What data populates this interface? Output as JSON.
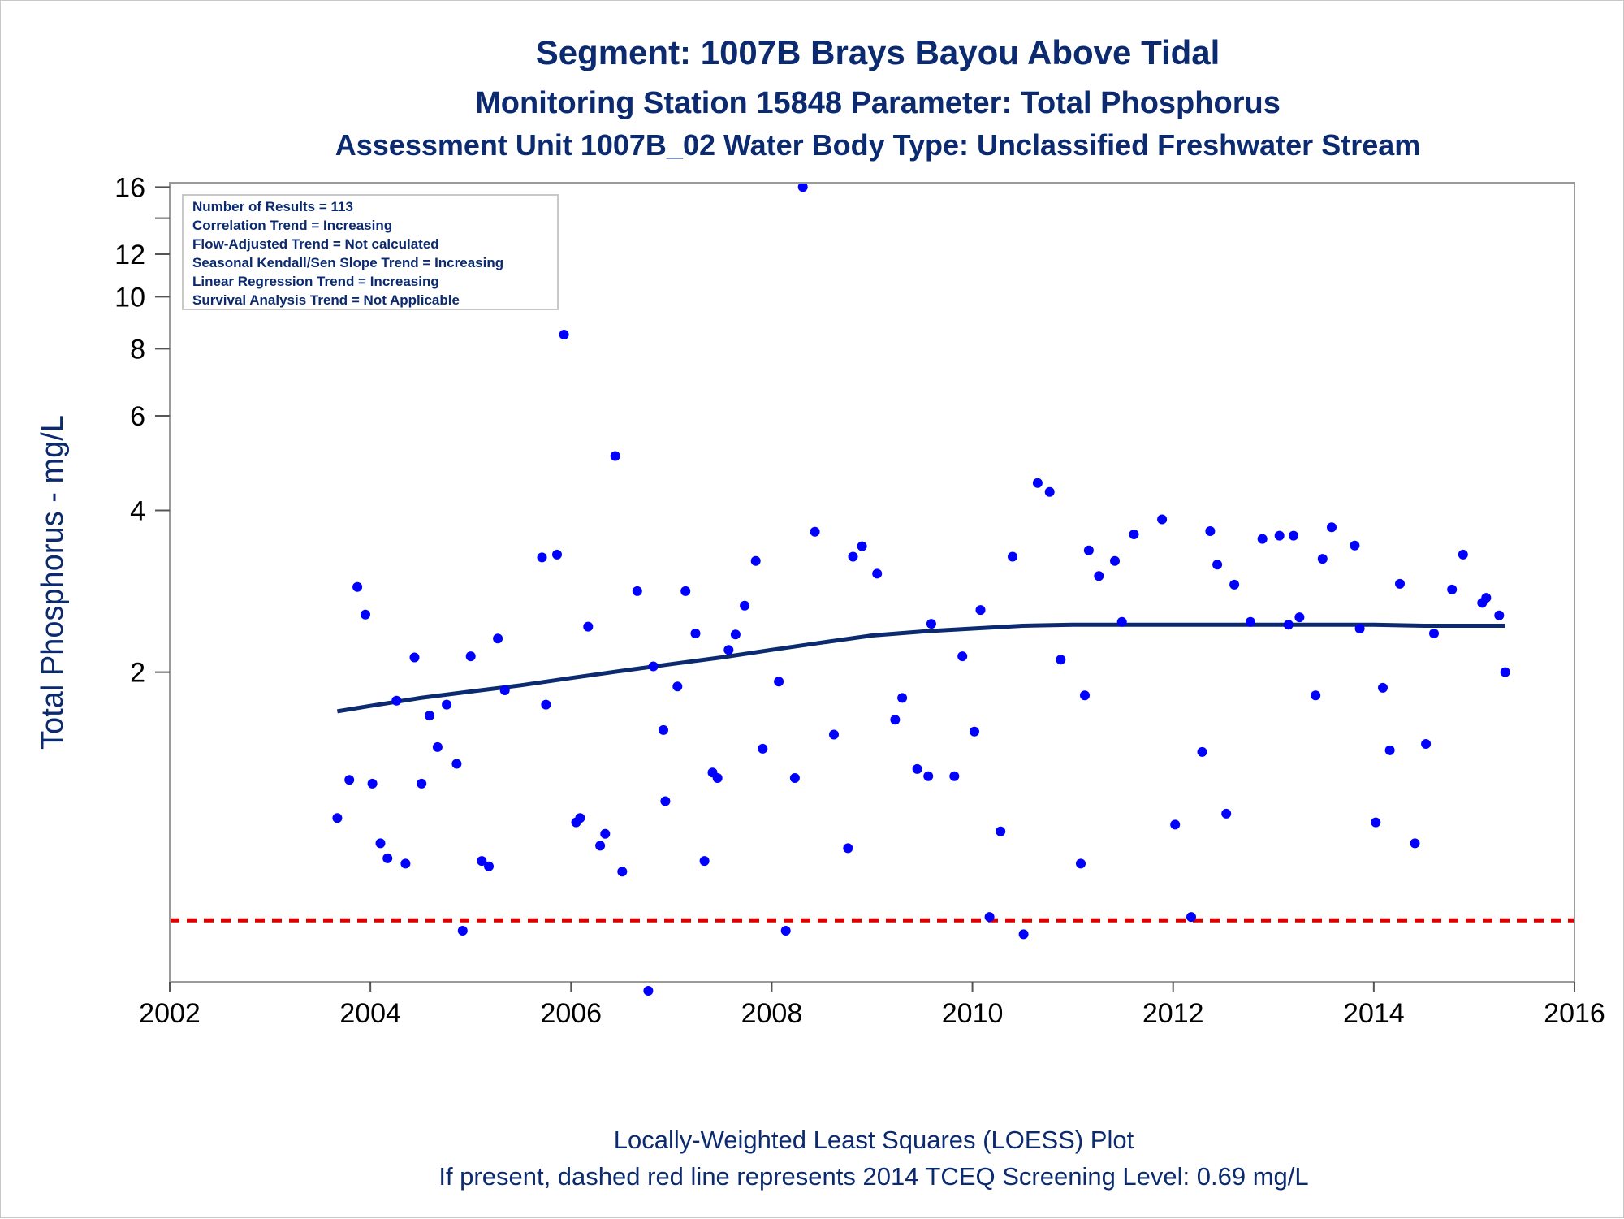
{
  "titles": {
    "line1": "Segment: 1007B  Brays Bayou Above Tidal",
    "line2": "Monitoring Station 15848 Parameter: Total Phosphorus",
    "line3": "Assessment Unit 1007B_02   Water Body Type: Unclassified Freshwater Stream"
  },
  "stats_box": [
    "Number of Results = 113",
    "Correlation Trend = Increasing",
    "Flow-Adjusted Trend = Not calculated",
    "Seasonal Kendall/Sen Slope Trend = Increasing",
    "Linear Regression Trend = Increasing",
    "Survival Analysis Trend = Not Applicable"
  ],
  "footer": {
    "line1": "Locally-Weighted Least Squares (LOESS) Plot",
    "line2": "If present, dashed red line represents 2014 TCEQ Screening Level: 0.69 mg/L"
  },
  "colors": {
    "title": "#0b2a6f",
    "points": "#0000ff",
    "loess": "#0b2a6f",
    "screening": "#dd0000",
    "frame": "#9a9a9a"
  },
  "chart_data": {
    "type": "scatter",
    "ylabel": "Total Phosphorus - mg/L",
    "xlabel": "",
    "yscale": "log",
    "xlim": [
      2002,
      2016
    ],
    "ylim": [
      0.53,
      16.3
    ],
    "x_ticks": [
      "2002",
      "2004",
      "2006",
      "2008",
      "2010",
      "2012",
      "2014",
      "2016"
    ],
    "y_ticks": [
      "2",
      "4",
      "6",
      "8",
      "10",
      "12",
      "16"
    ],
    "y_minor_ticks": [
      14
    ],
    "grid": false,
    "legend": "top-left",
    "screening_level": 0.69,
    "series": [
      {
        "type": "scatter",
        "x": [
          2003.67,
          2003.79,
          2003.87,
          2003.95,
          2004.02,
          2004.1,
          2004.17,
          2004.26,
          2004.35,
          2004.44,
          2004.51,
          2004.59,
          2004.67,
          2004.76,
          2004.86,
          2004.92,
          2005.0,
          2005.11,
          2005.18,
          2005.27,
          2005.34,
          2005.71,
          2005.75,
          2005.86,
          2005.93,
          2006.05,
          2006.09,
          2006.17,
          2006.29,
          2006.34,
          2006.44,
          2006.51,
          2006.66,
          2006.77,
          2006.82,
          2006.92,
          2006.94,
          2007.06,
          2007.14,
          2007.24,
          2007.33,
          2007.41,
          2007.46,
          2007.57,
          2007.64,
          2007.73,
          2007.84,
          2007.91,
          2008.07,
          2008.14,
          2008.23,
          2008.31,
          2008.43,
          2008.62,
          2008.76,
          2008.81,
          2008.9,
          2009.05,
          2009.23,
          2009.3,
          2009.45,
          2009.56,
          2009.59,
          2009.82,
          2009.9,
          2010.02,
          2010.08,
          2010.17,
          2010.28,
          2010.4,
          2010.51,
          2010.65,
          2010.77,
          2010.88,
          2011.08,
          2011.12,
          2011.16,
          2011.26,
          2011.42,
          2011.49,
          2011.61,
          2011.89,
          2012.02,
          2012.18,
          2012.29,
          2012.37,
          2012.44,
          2012.53,
          2012.61,
          2012.77,
          2012.89,
          2013.06,
          2013.15,
          2013.2,
          2013.26,
          2013.42,
          2013.49,
          2013.58,
          2013.81,
          2013.86,
          2014.02,
          2014.09,
          2014.16,
          2014.26,
          2014.41,
          2014.52,
          2014.6,
          2014.78,
          2014.89,
          2015.08,
          2015.12,
          2015.25,
          2015.31
        ],
        "y": [
          1.07,
          1.26,
          2.88,
          2.56,
          1.24,
          0.96,
          0.9,
          1.77,
          0.88,
          2.13,
          1.24,
          1.66,
          1.45,
          1.74,
          1.35,
          0.66,
          2.14,
          0.89,
          0.87,
          2.31,
          1.85,
          3.27,
          1.74,
          3.31,
          8.5,
          1.05,
          1.07,
          2.43,
          0.95,
          1.0,
          5.05,
          0.85,
          2.83,
          0.51,
          2.05,
          1.56,
          1.15,
          1.88,
          2.83,
          2.36,
          0.89,
          1.3,
          1.27,
          2.2,
          2.35,
          2.66,
          3.22,
          1.44,
          1.92,
          0.66,
          1.27,
          16.0,
          3.65,
          1.53,
          0.94,
          3.28,
          3.43,
          3.05,
          1.63,
          1.79,
          1.32,
          1.28,
          2.46,
          1.28,
          2.14,
          1.55,
          2.61,
          0.7,
          1.01,
          3.28,
          0.65,
          4.5,
          4.33,
          2.11,
          0.88,
          1.81,
          3.37,
          3.02,
          3.22,
          2.48,
          3.61,
          3.85,
          1.04,
          0.7,
          1.42,
          3.66,
          3.17,
          1.09,
          2.91,
          2.48,
          3.54,
          3.59,
          2.45,
          3.59,
          2.53,
          1.81,
          3.25,
          3.72,
          3.44,
          2.41,
          1.05,
          1.87,
          1.43,
          2.92,
          0.96,
          1.47,
          2.36,
          2.85,
          3.31,
          2.69,
          2.75,
          2.55,
          2.0
        ]
      },
      {
        "type": "line",
        "name": "LOESS",
        "x": [
          2003.67,
          2004.0,
          2004.5,
          2005.0,
          2005.5,
          2006.0,
          2006.5,
          2007.0,
          2007.5,
          2008.0,
          2008.5,
          2009.0,
          2009.5,
          2010.0,
          2010.5,
          2011.0,
          2011.5,
          2012.0,
          2012.5,
          2013.0,
          2013.5,
          2014.0,
          2014.5,
          2015.0,
          2015.31
        ],
        "y": [
          1.69,
          1.73,
          1.79,
          1.84,
          1.89,
          1.95,
          2.01,
          2.07,
          2.13,
          2.2,
          2.27,
          2.34,
          2.38,
          2.41,
          2.44,
          2.45,
          2.45,
          2.45,
          2.45,
          2.45,
          2.45,
          2.45,
          2.44,
          2.44,
          2.44
        ]
      }
    ]
  }
}
